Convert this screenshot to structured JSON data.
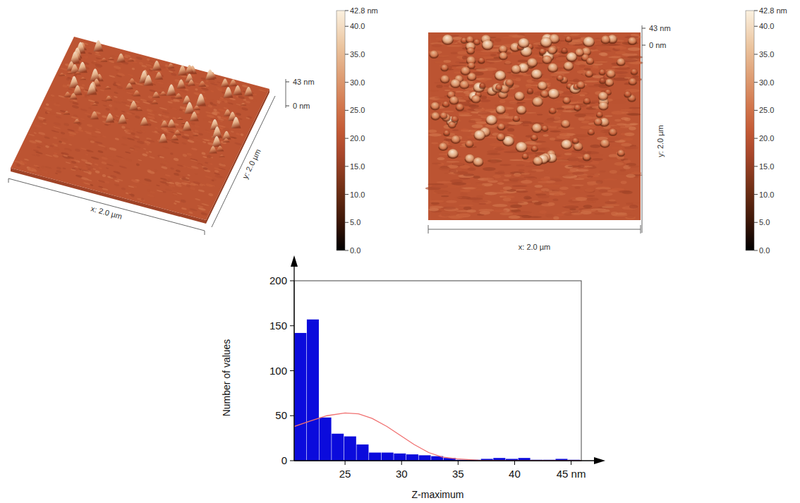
{
  "afm_3d": {
    "x_label": "x: 2.0 µm",
    "y_label": "y: 2.0 µm",
    "z_ticks": [
      {
        "value": 43,
        "label": "43 nm"
      },
      {
        "value": 0,
        "label": "0 nm"
      }
    ],
    "colorbar": {
      "range": [
        0,
        42.8
      ],
      "ticks": [
        {
          "value": 0,
          "label": "0.0"
        },
        {
          "value": 5,
          "label": "5.0"
        },
        {
          "value": 10,
          "label": "10.0"
        },
        {
          "value": 15,
          "label": "15.0"
        },
        {
          "value": 20,
          "label": "20.0"
        },
        {
          "value": 25,
          "label": "25.0"
        },
        {
          "value": 30,
          "label": "30.0"
        },
        {
          "value": 35,
          "label": "35.0"
        },
        {
          "value": 40,
          "label": "40.0"
        },
        {
          "value": 42.8,
          "label": "42.8 nm"
        }
      ]
    }
  },
  "afm_top": {
    "x_label": "x: 2.0 µm",
    "y_label": "y: 2.0 µm",
    "z_ticks": [
      {
        "value": 43,
        "label": "43 nm"
      },
      {
        "value": 0,
        "label": "0 nm"
      }
    ],
    "colorbar": {
      "range": [
        0,
        42.8
      ],
      "ticks": [
        {
          "value": 0,
          "label": "0.0"
        },
        {
          "value": 5,
          "label": "5.0"
        },
        {
          "value": 10,
          "label": "10.0"
        },
        {
          "value": 15,
          "label": "15.0"
        },
        {
          "value": 20,
          "label": "20.0"
        },
        {
          "value": 25,
          "label": "25.0"
        },
        {
          "value": 30,
          "label": "30.0"
        },
        {
          "value": 35,
          "label": "35.0"
        },
        {
          "value": 40,
          "label": "40.0"
        },
        {
          "value": 42.8,
          "label": "42.8 nm"
        }
      ]
    }
  },
  "chart_data": {
    "type": "histogram",
    "xlabel": "Z-maximum",
    "ylabel": "Number of values",
    "bins": [
      20.5,
      21.6,
      22.7,
      23.8,
      24.9,
      26.0,
      27.1,
      28.2,
      29.3,
      30.4,
      31.5,
      32.6,
      33.7,
      34.8,
      35.9,
      37.0,
      38.1,
      39.2,
      40.3,
      41.4,
      42.5,
      43.6,
      44.7,
      45.8
    ],
    "counts": [
      142,
      157,
      48,
      30,
      27,
      18,
      9,
      9,
      8,
      7,
      6,
      5,
      3,
      1,
      1,
      2,
      3,
      2,
      3,
      1,
      1,
      2,
      1
    ],
    "color": "#0b0bdc",
    "series": [
      {
        "type": "line",
        "color": "#f07070",
        "x": [
          20.5,
          21.9,
          23.4,
          25,
          26.2,
          27.4,
          28.7,
          29.9,
          31.1,
          32.4,
          33.6,
          34.9,
          36.8,
          39.3,
          45.9
        ],
        "values": [
          38,
          44,
          50,
          53,
          52,
          47,
          38,
          28,
          18,
          9,
          4,
          2,
          0.5,
          0,
          0
        ]
      }
    ],
    "xlim": [
      20.5,
      45.9
    ],
    "ylim": [
      0,
      200
    ],
    "xticks": [
      25,
      30,
      35,
      40,
      {
        "value": 45,
        "label": "45 nm"
      }
    ],
    "yticks": [
      0,
      50,
      100,
      150,
      200
    ]
  }
}
